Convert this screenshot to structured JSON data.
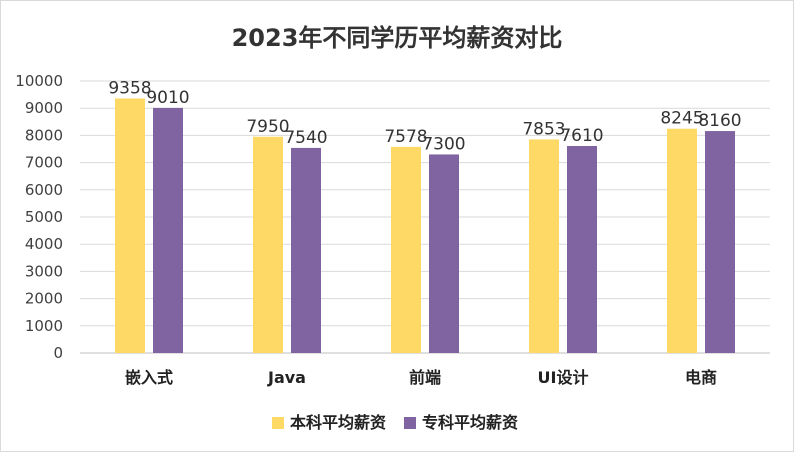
{
  "chart_data": {
    "type": "bar",
    "title": "2023年不同学历平均薪资对比",
    "categories": [
      "嵌入式",
      "Java",
      "前端",
      "UI设计",
      "电商"
    ],
    "series": [
      {
        "name": "本科平均薪资",
        "color": "#FFD966",
        "values": [
          9358,
          7950,
          7578,
          7853,
          8245
        ]
      },
      {
        "name": "专科平均薪资",
        "color": "#8064A2",
        "values": [
          9010,
          7540,
          7300,
          7610,
          8160
        ]
      }
    ],
    "ylim": [
      0,
      10000
    ],
    "yticks": [
      0,
      1000,
      2000,
      3000,
      4000,
      5000,
      6000,
      7000,
      8000,
      9000,
      10000
    ],
    "xlabel": "",
    "ylabel": "",
    "grid": true,
    "legend_position": "bottom"
  }
}
